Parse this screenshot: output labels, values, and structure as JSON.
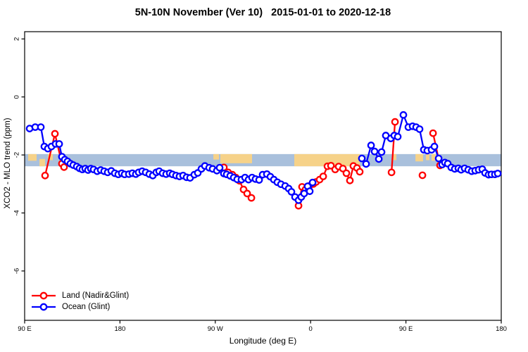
{
  "chart_data": {
    "type": "line",
    "title": "5N-10N November (Ver 10)   2015-01-01 to 2020-12-18",
    "xlabel": "Longitude (deg E)",
    "ylabel": "XCO2 - MLO trend (ppm)",
    "x_axis_note": "longitude wraps eastward from 90E through 180, 90W, 0, 90E to 180; positions below are degrees east of left edge (90E)",
    "x_range_deg": [
      0,
      450
    ],
    "ylim": [
      -6.9,
      2.25
    ],
    "grid": false,
    "legend_position": "bottom-left inside plot",
    "x_ticks": [
      {
        "pos": 0,
        "label": "90 E"
      },
      {
        "pos": 90,
        "label": "180"
      },
      {
        "pos": 180,
        "label": "90 W"
      },
      {
        "pos": 270,
        "label": "0"
      },
      {
        "pos": 360,
        "label": "90 E"
      },
      {
        "pos": 450,
        "label": "180"
      }
    ],
    "y_ticks": [
      {
        "value": 2,
        "label": "2"
      },
      {
        "value": 0,
        "label": "0"
      },
      {
        "value": -2,
        "label": "-2"
      },
      {
        "value": -4,
        "label": "-4"
      },
      {
        "value": -6,
        "label": "-6"
      }
    ],
    "band": {
      "description": "5N-10N latitude strip map: ocean blue with tan land segments",
      "v_top": -1.97,
      "v_bottom": -2.39,
      "ocean_color": "#a9c0dc",
      "land_color": "#f6d289",
      "land_segments": [
        {
          "from": 3.3,
          "to": 11.3,
          "h": 0.55,
          "align": "top"
        },
        {
          "from": 14.0,
          "to": 19.3,
          "h": 0.6,
          "align": "bottom"
        },
        {
          "from": 21.9,
          "to": 26.6,
          "h": 0.5,
          "align": "top"
        },
        {
          "from": 178.2,
          "to": 183.5,
          "h": 0.45,
          "align": "top"
        },
        {
          "from": 184.8,
          "to": 214.7,
          "h": 0.75,
          "align": "top"
        },
        {
          "from": 254.6,
          "to": 316.4,
          "h": 1.0,
          "align": "top"
        },
        {
          "from": 347.7,
          "to": 351.0,
          "h": 0.5,
          "align": "top"
        },
        {
          "from": 369.0,
          "to": 376.2,
          "h": 0.6,
          "align": "top"
        },
        {
          "from": 378.9,
          "to": 382.2,
          "h": 0.5,
          "align": "top"
        },
        {
          "from": 384.2,
          "to": 388.3,
          "h": 0.55,
          "align": "top"
        }
      ]
    },
    "series": [
      {
        "name": "Land (Nadir&Glint)",
        "color": "#ff0000",
        "marker": "open-circle",
        "segments": [
          [
            [
              19.3,
              -2.71
            ],
            [
              28.6,
              -1.27
            ],
            [
              35.2,
              -2.3
            ],
            [
              37.2,
              -2.42
            ]
          ],
          [
            [
              188.1,
              -2.43
            ],
            [
              192.1,
              -2.6
            ],
            [
              196.1,
              -2.68
            ],
            [
              199.4,
              -2.78
            ],
            [
              202.8,
              -2.89
            ],
            [
              206.7,
              -3.19
            ],
            [
              210.1,
              -3.33
            ],
            [
              214.1,
              -3.48
            ]
          ],
          [
            [
              258.6,
              -3.75
            ],
            [
              261.9,
              -3.1
            ],
            [
              265.2,
              -3.19
            ],
            [
              268.6,
              -3.07
            ],
            [
              272.6,
              -3.0
            ],
            [
              275.2,
              -2.93
            ],
            [
              278.5,
              -2.85
            ],
            [
              281.9,
              -2.74
            ],
            [
              285.9,
              -2.39
            ],
            [
              289.2,
              -2.37
            ],
            [
              293.2,
              -2.5
            ],
            [
              296.5,
              -2.4
            ],
            [
              300.5,
              -2.47
            ],
            [
              303.8,
              -2.63
            ],
            [
              307.1,
              -2.88
            ],
            [
              310.4,
              -2.38
            ],
            [
              313.8,
              -2.45
            ],
            [
              316.4,
              -2.58
            ]
          ],
          [
            [
              346.4,
              -2.6
            ],
            [
              349.7,
              -0.86
            ]
          ],
          [
            [
              375.6,
              -2.7
            ]
          ],
          [
            [
              385.6,
              -1.25
            ],
            [
              392.2,
              -2.36
            ]
          ]
        ]
      },
      {
        "name": "Ocean (Glint)",
        "color": "#0000ff",
        "marker": "open-circle",
        "segments": [
          [
            [
              4.7,
              -1.09
            ],
            [
              10,
              -1.04
            ],
            [
              15.3,
              -1.04
            ],
            [
              18.6,
              -1.71
            ],
            [
              21.9,
              -1.78
            ],
            [
              25.3,
              -1.71
            ],
            [
              29.2,
              -1.62
            ],
            [
              32.6,
              -1.62
            ],
            [
              35.2,
              -2.06
            ],
            [
              37.9,
              -2.16
            ],
            [
              40.5,
              -2.22
            ],
            [
              43.2,
              -2.3
            ],
            [
              45.9,
              -2.35
            ],
            [
              49.2,
              -2.4
            ],
            [
              51.8,
              -2.46
            ],
            [
              54.5,
              -2.5
            ],
            [
              57.2,
              -2.47
            ],
            [
              59.8,
              -2.52
            ],
            [
              62.5,
              -2.47
            ],
            [
              65.1,
              -2.5
            ],
            [
              68.5,
              -2.56
            ],
            [
              71.8,
              -2.52
            ],
            [
              75.1,
              -2.56
            ],
            [
              78.4,
              -2.6
            ],
            [
              81.8,
              -2.55
            ],
            [
              85.1,
              -2.63
            ],
            [
              88.4,
              -2.67
            ],
            [
              91.7,
              -2.63
            ],
            [
              94.4,
              -2.67
            ],
            [
              98.4,
              -2.66
            ],
            [
              101.7,
              -2.63
            ],
            [
              105,
              -2.66
            ],
            [
              107.7,
              -2.6
            ],
            [
              111,
              -2.56
            ],
            [
              114.3,
              -2.6
            ],
            [
              117.7,
              -2.66
            ],
            [
              121,
              -2.71
            ],
            [
              124.3,
              -2.6
            ],
            [
              127,
              -2.56
            ],
            [
              130.3,
              -2.63
            ],
            [
              133.6,
              -2.66
            ],
            [
              137,
              -2.63
            ],
            [
              139.6,
              -2.67
            ],
            [
              142.9,
              -2.71
            ],
            [
              146.2,
              -2.74
            ],
            [
              149.6,
              -2.71
            ],
            [
              152.9,
              -2.77
            ],
            [
              156.2,
              -2.79
            ],
            [
              160.2,
              -2.68
            ],
            [
              163.5,
              -2.62
            ],
            [
              166.9,
              -2.48
            ],
            [
              170.2,
              -2.38
            ],
            [
              174.2,
              -2.44
            ],
            [
              177.5,
              -2.48
            ],
            [
              181.5,
              -2.54
            ],
            [
              184.1,
              -2.44
            ],
            [
              188.1,
              -2.64
            ],
            [
              190.8,
              -2.67
            ],
            [
              194.1,
              -2.72
            ],
            [
              197.4,
              -2.78
            ],
            [
              200.7,
              -2.84
            ],
            [
              204.7,
              -2.85
            ],
            [
              208.1,
              -2.78
            ],
            [
              211.4,
              -2.85
            ],
            [
              214.7,
              -2.78
            ],
            [
              218,
              -2.83
            ],
            [
              221.4,
              -2.86
            ],
            [
              224.7,
              -2.68
            ],
            [
              228.7,
              -2.66
            ],
            [
              232,
              -2.75
            ],
            [
              235.3,
              -2.85
            ],
            [
              238.6,
              -2.94
            ],
            [
              242,
              -3.01
            ],
            [
              246,
              -3.07
            ],
            [
              249.3,
              -3.16
            ],
            [
              251.9,
              -3.27
            ],
            [
              255.3,
              -3.45
            ],
            [
              258.6,
              -3.56
            ],
            [
              261.2,
              -3.45
            ],
            [
              263.9,
              -3.33
            ],
            [
              267.2,
              -3.08
            ],
            [
              269.2,
              -3.25
            ],
            [
              271.9,
              -2.95
            ]
          ],
          [
            [
              318.4,
              -2.12
            ],
            [
              322.4,
              -2.31
            ],
            [
              327.1,
              -1.67
            ],
            [
              330.4,
              -1.88
            ],
            [
              334.4,
              -2.14
            ],
            [
              337,
              -1.9
            ],
            [
              341,
              -1.33
            ],
            [
              345.7,
              -1.43
            ],
            [
              349,
              -1.33
            ],
            [
              352.3,
              -1.37
            ],
            [
              357.6,
              -0.62
            ],
            [
              362.3,
              -1.04
            ],
            [
              366.3,
              -1.01
            ],
            [
              369.6,
              -1.04
            ],
            [
              372.9,
              -1.11
            ],
            [
              376.9,
              -1.82
            ],
            [
              380.2,
              -1.85
            ],
            [
              384.2,
              -1.82
            ],
            [
              386.9,
              -1.71
            ],
            [
              390.9,
              -2.12
            ],
            [
              394.2,
              -2.33
            ],
            [
              396.8,
              -2.26
            ],
            [
              399.5,
              -2.3
            ],
            [
              402.8,
              -2.43
            ],
            [
              406.1,
              -2.48
            ],
            [
              409.5,
              -2.46
            ],
            [
              412.1,
              -2.51
            ],
            [
              415.4,
              -2.46
            ],
            [
              418.8,
              -2.51
            ],
            [
              422.1,
              -2.56
            ],
            [
              425.4,
              -2.54
            ],
            [
              428.7,
              -2.51
            ],
            [
              432.1,
              -2.49
            ],
            [
              434.7,
              -2.62
            ],
            [
              438,
              -2.68
            ],
            [
              440.7,
              -2.67
            ],
            [
              444,
              -2.67
            ],
            [
              446.7,
              -2.64
            ]
          ]
        ]
      }
    ]
  }
}
